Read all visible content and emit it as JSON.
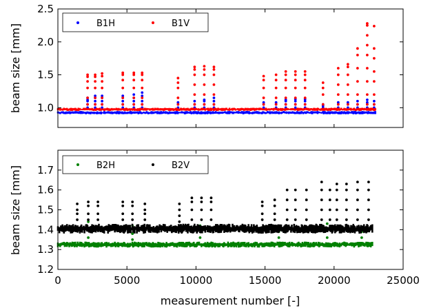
{
  "chart_data": [
    {
      "type": "scatter",
      "ylabel": "beam size [mm]",
      "xlim": [
        0,
        25000
      ],
      "ylim": [
        0.7,
        2.5
      ],
      "yticks": [
        1.0,
        1.5,
        2.0,
        2.5
      ],
      "ytick_labels": [
        "1.0",
        "1.5",
        "2.0",
        "2.5"
      ],
      "legend": {
        "position": "top-left",
        "entries": [
          "B1H",
          "B1V"
        ]
      },
      "series": [
        {
          "name": "B1H",
          "color": "#0000ff",
          "baseline": {
            "x_range": [
              0,
              23000
            ],
            "y_range": [
              0.9,
              0.95
            ]
          },
          "spikes": [
            {
              "x": 2150,
              "values": [
                1.0,
                1.05,
                1.1,
                1.12,
                1.15
              ]
            },
            {
              "x": 2700,
              "values": [
                1.0,
                1.05,
                1.1,
                1.15,
                1.18
              ]
            },
            {
              "x": 3200,
              "values": [
                1.0,
                1.05,
                1.1,
                1.15,
                1.18
              ]
            },
            {
              "x": 4700,
              "values": [
                1.0,
                1.05,
                1.1,
                1.15,
                1.18
              ]
            },
            {
              "x": 5500,
              "values": [
                1.0,
                1.05,
                1.1,
                1.15,
                1.2
              ]
            },
            {
              "x": 6100,
              "values": [
                1.0,
                1.05,
                1.1,
                1.18,
                1.23
              ]
            },
            {
              "x": 8700,
              "values": [
                1.0,
                1.05,
                1.08
              ]
            },
            {
              "x": 9900,
              "values": [
                1.0,
                1.05,
                1.1
              ]
            },
            {
              "x": 10600,
              "values": [
                1.0,
                1.05,
                1.1,
                1.12
              ]
            },
            {
              "x": 11300,
              "values": [
                1.0,
                1.05,
                1.1,
                1.15
              ]
            },
            {
              "x": 14900,
              "values": [
                1.0,
                1.05,
                1.08
              ]
            },
            {
              "x": 15800,
              "values": [
                1.0,
                1.05,
                1.08
              ]
            },
            {
              "x": 16500,
              "values": [
                1.0,
                1.05,
                1.1,
                1.12
              ]
            },
            {
              "x": 17200,
              "values": [
                1.0,
                1.05,
                1.1,
                1.13
              ]
            },
            {
              "x": 17900,
              "values": [
                1.0,
                1.05,
                1.1,
                1.13
              ]
            },
            {
              "x": 19200,
              "values": [
                1.0,
                1.03,
                1.05
              ]
            },
            {
              "x": 20300,
              "values": [
                1.0,
                1.05,
                1.08
              ]
            },
            {
              "x": 21000,
              "values": [
                1.0,
                1.05,
                1.08
              ]
            },
            {
              "x": 21700,
              "values": [
                1.0,
                1.05,
                1.1
              ]
            },
            {
              "x": 22400,
              "values": [
                1.0,
                1.05,
                1.08,
                1.12
              ]
            },
            {
              "x": 22900,
              "values": [
                1.0,
                1.05,
                1.1
              ]
            }
          ]
        },
        {
          "name": "B1V",
          "color": "#ff0000",
          "baseline": {
            "x_range": [
              0,
              23000
            ],
            "y_range": [
              0.95,
              1.0
            ]
          },
          "spikes": [
            {
              "x": 2150,
              "values": [
                1.05,
                1.15,
                1.3,
                1.4,
                1.47,
                1.5
              ]
            },
            {
              "x": 2700,
              "values": [
                1.05,
                1.15,
                1.3,
                1.4,
                1.47,
                1.5
              ]
            },
            {
              "x": 3200,
              "values": [
                1.05,
                1.15,
                1.3,
                1.4,
                1.48,
                1.52
              ]
            },
            {
              "x": 4700,
              "values": [
                1.05,
                1.15,
                1.3,
                1.42,
                1.5,
                1.53
              ]
            },
            {
              "x": 5500,
              "values": [
                1.05,
                1.15,
                1.3,
                1.42,
                1.5,
                1.53
              ]
            },
            {
              "x": 6100,
              "values": [
                1.05,
                1.15,
                1.3,
                1.42,
                1.5,
                1.53
              ]
            },
            {
              "x": 8700,
              "values": [
                1.05,
                1.15,
                1.3,
                1.38,
                1.45
              ]
            },
            {
              "x": 9900,
              "values": [
                1.05,
                1.2,
                1.35,
                1.5,
                1.58,
                1.62
              ]
            },
            {
              "x": 10600,
              "values": [
                1.05,
                1.2,
                1.35,
                1.5,
                1.58,
                1.63
              ]
            },
            {
              "x": 11300,
              "values": [
                1.05,
                1.2,
                1.35,
                1.5,
                1.58,
                1.62
              ]
            },
            {
              "x": 14900,
              "values": [
                1.05,
                1.15,
                1.3,
                1.42,
                1.48
              ]
            },
            {
              "x": 15800,
              "values": [
                1.05,
                1.15,
                1.3,
                1.42,
                1.5
              ]
            },
            {
              "x": 16500,
              "values": [
                1.05,
                1.15,
                1.3,
                1.42,
                1.5,
                1.55
              ]
            },
            {
              "x": 17200,
              "values": [
                1.05,
                1.15,
                1.3,
                1.42,
                1.5,
                1.55
              ]
            },
            {
              "x": 17900,
              "values": [
                1.05,
                1.15,
                1.3,
                1.42,
                1.5,
                1.55
              ]
            },
            {
              "x": 19200,
              "values": [
                1.05,
                1.2,
                1.3,
                1.38
              ]
            },
            {
              "x": 20300,
              "values": [
                1.05,
                1.2,
                1.35,
                1.5,
                1.6
              ]
            },
            {
              "x": 21000,
              "values": [
                1.05,
                1.2,
                1.35,
                1.5,
                1.62,
                1.66
              ]
            },
            {
              "x": 21700,
              "values": [
                1.05,
                1.2,
                1.4,
                1.6,
                1.8,
                1.9
              ]
            },
            {
              "x": 22400,
              "values": [
                1.05,
                1.2,
                1.4,
                1.6,
                1.8,
                1.95,
                2.1,
                2.25,
                2.28
              ]
            },
            {
              "x": 22900,
              "values": [
                1.05,
                1.2,
                1.4,
                1.55,
                1.75,
                1.9,
                2.24
              ]
            }
          ]
        }
      ]
    },
    {
      "type": "scatter",
      "xlabel": "measurement number [-]",
      "ylabel": "beam size [mm]",
      "xlim": [
        0,
        25000
      ],
      "ylim": [
        1.2,
        1.8
      ],
      "xticks": [
        0,
        5000,
        10000,
        15000,
        20000,
        25000
      ],
      "xtick_labels": [
        "0",
        "5000",
        "10000",
        "15000",
        "20000",
        "25000"
      ],
      "yticks": [
        1.2,
        1.3,
        1.4,
        1.5,
        1.6,
        1.7
      ],
      "ytick_labels": [
        "1.2",
        "1.3",
        "1.4",
        "1.5",
        "1.6",
        "1.7"
      ],
      "legend": {
        "position": "top-left",
        "entries": [
          "B2H",
          "B2V"
        ]
      },
      "series": [
        {
          "name": "B2H",
          "color": "#008000",
          "baseline": {
            "x_range": [
              0,
              22800
            ],
            "y_range": [
              1.31,
              1.34
            ]
          },
          "spikes": [
            {
              "x": 2200,
              "values": [
                1.36,
                1.4,
                1.44
              ]
            },
            {
              "x": 5400,
              "values": [
                1.35,
                1.38,
                1.42
              ]
            },
            {
              "x": 10300,
              "values": [
                1.36,
                1.4,
                1.42
              ]
            },
            {
              "x": 16000,
              "values": [
                1.36,
                1.39,
                1.41
              ]
            },
            {
              "x": 19500,
              "values": [
                1.36,
                1.4,
                1.43
              ]
            },
            {
              "x": 22000,
              "values": [
                1.36,
                1.39
              ]
            }
          ]
        },
        {
          "name": "B2V",
          "color": "#000000",
          "baseline": {
            "x_range": [
              0,
              22800
            ],
            "y_range": [
              1.38,
              1.43
            ]
          },
          "spikes": [
            {
              "x": 1400,
              "values": [
                1.45,
                1.48,
                1.5,
                1.53
              ]
            },
            {
              "x": 2200,
              "values": [
                1.45,
                1.48,
                1.52,
                1.54
              ]
            },
            {
              "x": 2900,
              "values": [
                1.45,
                1.48,
                1.52,
                1.54
              ]
            },
            {
              "x": 4700,
              "values": [
                1.45,
                1.48,
                1.52,
                1.54
              ]
            },
            {
              "x": 5400,
              "values": [
                1.45,
                1.48,
                1.52,
                1.54
              ]
            },
            {
              "x": 6300,
              "values": [
                1.45,
                1.48,
                1.5,
                1.53
              ]
            },
            {
              "x": 8800,
              "values": [
                1.44,
                1.47,
                1.5,
                1.53
              ]
            },
            {
              "x": 9700,
              "values": [
                1.45,
                1.5,
                1.54,
                1.56
              ]
            },
            {
              "x": 10400,
              "values": [
                1.45,
                1.5,
                1.54,
                1.56
              ]
            },
            {
              "x": 11100,
              "values": [
                1.45,
                1.5,
                1.54,
                1.56
              ]
            },
            {
              "x": 14800,
              "values": [
                1.45,
                1.48,
                1.52,
                1.54
              ]
            },
            {
              "x": 15700,
              "values": [
                1.45,
                1.48,
                1.52,
                1.55
              ]
            },
            {
              "x": 16600,
              "values": [
                1.45,
                1.5,
                1.55,
                1.6
              ]
            },
            {
              "x": 17200,
              "values": [
                1.45,
                1.5,
                1.55,
                1.6
              ]
            },
            {
              "x": 18000,
              "values": [
                1.45,
                1.5,
                1.55,
                1.6
              ]
            },
            {
              "x": 19100,
              "values": [
                1.45,
                1.5,
                1.55,
                1.6,
                1.64
              ]
            },
            {
              "x": 19700,
              "values": [
                1.45,
                1.5,
                1.55,
                1.6
              ]
            },
            {
              "x": 20200,
              "values": [
                1.45,
                1.5,
                1.55,
                1.6,
                1.63
              ]
            },
            {
              "x": 20900,
              "values": [
                1.45,
                1.5,
                1.55,
                1.6,
                1.63
              ]
            },
            {
              "x": 21700,
              "values": [
                1.45,
                1.5,
                1.55,
                1.6,
                1.64
              ]
            },
            {
              "x": 22500,
              "values": [
                1.45,
                1.5,
                1.55,
                1.6,
                1.64
              ]
            }
          ]
        }
      ]
    }
  ]
}
